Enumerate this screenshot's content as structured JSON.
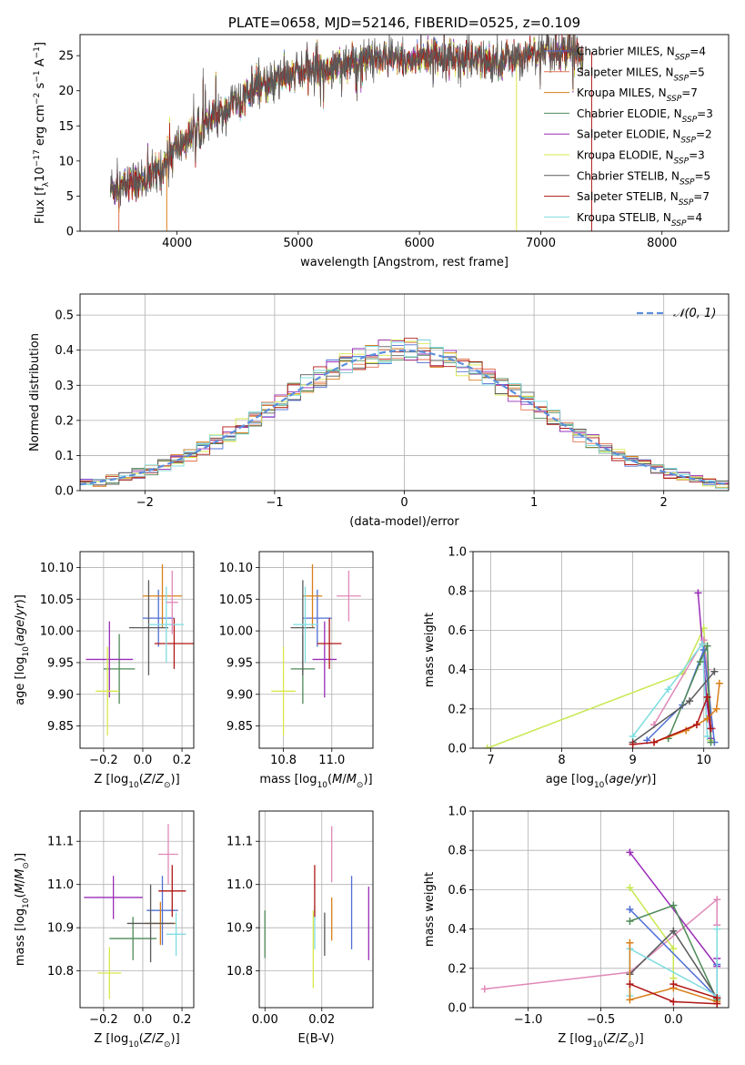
{
  "figure_title": "PLATE=0658, MJD=52146, FIBERID=0525, z=0.109",
  "model_colors": {
    "Chabrier MILES": "#4f6fd6",
    "Salpeter MILES": "#e07050",
    "Kroupa MILES": "#d97f1a",
    "Chabrier ELODIE": "#4e8a57",
    "Salpeter ELODIE": "#9a2cb8",
    "Kroupa ELODIE": "#d9e84a",
    "Chabrier STELIB": "#5a5a5a",
    "Salpeter STELIB": "#b01515",
    "Kroupa STELIB": "#7fdde0",
    "pink": "#e088b8",
    "lime": "#c8e850",
    "gaussian": "#5b8fdc"
  },
  "chart_data": [
    {
      "id": "spectrum",
      "type": "line",
      "title": "PLATE=0658, MJD=52146, FIBERID=0525, z=0.109",
      "xlabel": "wavelength [Angstrom, rest frame]",
      "ylabel": "Flux [f_λ 10^-17 erg cm^-2 s^-1 A^-1]",
      "xlim": [
        3200,
        8550
      ],
      "ylim": [
        0,
        28
      ],
      "xticks": [
        4000,
        5000,
        6000,
        7000,
        8000
      ],
      "yticks": [
        0,
        5,
        10,
        15,
        20,
        25
      ],
      "grid": false,
      "legend_position": "right",
      "continuum": {
        "x": [
          3450,
          3600,
          3750,
          3880,
          3950,
          4100,
          4300,
          4500,
          4700,
          4900,
          5100,
          5300,
          5500,
          5700,
          5900,
          6100,
          6300,
          6500,
          6700,
          6900,
          7100,
          7250,
          7350
        ],
        "y": [
          6.0,
          6.8,
          7.5,
          9.0,
          11.0,
          13.5,
          16.0,
          18.5,
          20.5,
          22.0,
          23.0,
          23.5,
          24.0,
          24.5,
          24.3,
          25.0,
          24.8,
          24.2,
          24.5,
          25.2,
          25.5,
          25.6,
          25.5
        ]
      },
      "series": [
        {
          "name": "Chabrier MILES",
          "label": "Chabrier MILES, N",
          "sub": "SSP",
          "count": "=4",
          "color": "#4f6fd6"
        },
        {
          "name": "Salpeter MILES",
          "label": "Salpeter MILES, N",
          "sub": "SSP",
          "count": "=5",
          "color": "#e07050"
        },
        {
          "name": "Kroupa MILES",
          "label": "Kroupa MILES, N",
          "sub": "SSP",
          "count": "=7",
          "color": "#d97f1a"
        },
        {
          "name": "Chabrier ELODIE",
          "label": "Chabrier ELODIE, N",
          "sub": "SSP",
          "count": "=3",
          "color": "#4e8a57"
        },
        {
          "name": "Salpeter ELODIE",
          "label": "Salpeter ELODIE, N",
          "sub": "SSP",
          "count": "=2",
          "color": "#9a2cb8"
        },
        {
          "name": "Kroupa ELODIE",
          "label": "Kroupa ELODIE, N",
          "sub": "SSP",
          "count": "=3",
          "color": "#d9e84a"
        },
        {
          "name": "Chabrier STELIB",
          "label": "Chabrier STELIB, N",
          "sub": "SSP",
          "count": "=5",
          "color": "#5a5a5a"
        },
        {
          "name": "Salpeter STELIB",
          "label": "Salpeter STELIB, N",
          "sub": "SSP",
          "count": "=7",
          "color": "#b01515"
        },
        {
          "name": "Kroupa STELIB",
          "label": "Kroupa STELIB, N",
          "sub": "SSP",
          "count": "=4",
          "color": "#7fdde0"
        }
      ]
    },
    {
      "id": "residuals",
      "type": "line",
      "xlabel": "(data-model)/error",
      "ylabel": "Normed distribution",
      "xlim": [
        -2.5,
        2.5
      ],
      "ylim": [
        0,
        0.56
      ],
      "xticks": [
        -2,
        -1,
        0,
        1,
        2
      ],
      "yticks": [
        0.0,
        0.1,
        0.2,
        0.3,
        0.4,
        0.5
      ],
      "grid": true,
      "legend_position": "top-right",
      "gaussian": {
        "label": "𝒩(0, 1)",
        "mean": 0,
        "sigma": 1
      },
      "bin_width": 0.1,
      "series_colors": [
        "#4f6fd6",
        "#e07050",
        "#d97f1a",
        "#4e8a57",
        "#9a2cb8",
        "#d9e84a",
        "#5a5a5a",
        "#b01515",
        "#7fdde0"
      ]
    },
    {
      "id": "age-vs-Z",
      "type": "scatter",
      "xlabel": "Z [log10(Z/Z⊙)]",
      "ylabel": "age [log10(age/yr)]",
      "xlim": [
        -0.32,
        0.26
      ],
      "ylim": [
        9.815,
        10.125
      ],
      "xticks": [
        -0.2,
        0.0,
        0.2
      ],
      "yticks": [
        9.85,
        9.9,
        9.95,
        10.0,
        10.05,
        10.1
      ],
      "grid": true,
      "points": [
        {
          "x": 0.08,
          "y": 10.02,
          "xerr": 0.08,
          "yerr": 0.045,
          "color": "#4f6fd6"
        },
        {
          "x": 0.1,
          "y": 10.055,
          "xerr": 0.1,
          "yerr": 0.05,
          "color": "#d97f1a"
        },
        {
          "x": -0.12,
          "y": 9.94,
          "xerr": 0.08,
          "yerr": 0.055,
          "color": "#4e8a57"
        },
        {
          "x": -0.17,
          "y": 9.955,
          "xerr": 0.12,
          "yerr": 0.06,
          "color": "#9a2cb8"
        },
        {
          "x": -0.18,
          "y": 9.905,
          "xerr": 0.06,
          "yerr": 0.07,
          "color": "#d9e84a"
        },
        {
          "x": 0.03,
          "y": 10.005,
          "xerr": 0.1,
          "yerr": 0.075,
          "color": "#5a5a5a"
        },
        {
          "x": 0.16,
          "y": 9.98,
          "xerr": 0.1,
          "yerr": 0.04,
          "color": "#b01515"
        },
        {
          "x": 0.12,
          "y": 10.01,
          "xerr": 0.09,
          "yerr": 0.06,
          "color": "#7fdde0"
        },
        {
          "x": 0.15,
          "y": 10.045,
          "xerr": 0.03,
          "yerr": 0.05,
          "color": "#e088b8"
        }
      ]
    },
    {
      "id": "age-vs-mass",
      "type": "scatter",
      "xlabel": "mass [log10(M/M⊙)]",
      "ylabel": "",
      "xlim": [
        10.7,
        11.17
      ],
      "ylim": [
        9.815,
        10.125
      ],
      "xticks": [
        10.8,
        11.0
      ],
      "yticks": [
        9.85,
        9.9,
        9.95,
        10.0,
        10.05,
        10.1
      ],
      "grid": true,
      "points": [
        {
          "x": 10.94,
          "y": 10.02,
          "xerr": 0.06,
          "yerr": 0.045,
          "color": "#4f6fd6"
        },
        {
          "x": 10.92,
          "y": 10.055,
          "xerr": 0.04,
          "yerr": 0.05,
          "color": "#d97f1a"
        },
        {
          "x": 10.88,
          "y": 9.94,
          "xerr": 0.05,
          "yerr": 0.055,
          "color": "#4e8a57"
        },
        {
          "x": 10.97,
          "y": 9.955,
          "xerr": 0.05,
          "yerr": 0.06,
          "color": "#9a2cb8"
        },
        {
          "x": 10.8,
          "y": 9.905,
          "xerr": 0.05,
          "yerr": 0.07,
          "color": "#d9e84a"
        },
        {
          "x": 10.88,
          "y": 10.005,
          "xerr": 0.05,
          "yerr": 0.075,
          "color": "#5a5a5a"
        },
        {
          "x": 10.99,
          "y": 9.98,
          "xerr": 0.05,
          "yerr": 0.04,
          "color": "#b01515"
        },
        {
          "x": 10.89,
          "y": 10.01,
          "xerr": 0.05,
          "yerr": 0.06,
          "color": "#7fdde0"
        },
        {
          "x": 11.07,
          "y": 10.055,
          "xerr": 0.05,
          "yerr": 0.04,
          "color": "#e088b8"
        }
      ]
    },
    {
      "id": "weight-vs-age",
      "type": "line",
      "xlabel": "age [log10(age/yr)]",
      "ylabel": "mass weight",
      "xlim": [
        6.75,
        10.35
      ],
      "ylim": [
        0,
        1.0
      ],
      "xticks": [
        7,
        8,
        9,
        10
      ],
      "yticks": [
        0.0,
        0.2,
        0.4,
        0.6,
        0.8,
        1.0
      ],
      "grid": true,
      "series": [
        {
          "color": "#c8e850",
          "x": [
            6.95,
            9.7,
            10.0,
            10.1
          ],
          "y": [
            0.0,
            0.38,
            0.61,
            0.04
          ]
        },
        {
          "color": "#9a2cb8",
          "x": [
            9.92,
            10.05,
            10.1
          ],
          "y": [
            0.79,
            0.22,
            0.05
          ]
        },
        {
          "color": "#e088b8",
          "x": [
            9.3,
            10.0,
            10.05,
            10.12
          ],
          "y": [
            0.12,
            0.55,
            0.4,
            0.1
          ]
        },
        {
          "color": "#7fdde0",
          "x": [
            9.0,
            9.5,
            9.98,
            10.05
          ],
          "y": [
            0.06,
            0.3,
            0.53,
            0.06
          ]
        },
        {
          "color": "#4f6fd6",
          "x": [
            9.2,
            9.7,
            10.0,
            10.15
          ],
          "y": [
            0.04,
            0.22,
            0.5,
            0.03
          ]
        },
        {
          "color": "#4e8a57",
          "x": [
            9.5,
            9.95,
            10.05,
            10.1
          ],
          "y": [
            0.05,
            0.44,
            0.52,
            0.03
          ]
        },
        {
          "color": "#5a5a5a",
          "x": [
            9.0,
            9.8,
            10.15
          ],
          "y": [
            0.03,
            0.24,
            0.39
          ]
        },
        {
          "color": "#d97f1a",
          "x": [
            9.3,
            9.75,
            10.05,
            10.18,
            10.22
          ],
          "y": [
            0.03,
            0.09,
            0.15,
            0.2,
            0.33
          ]
        },
        {
          "color": "#b01515",
          "x": [
            9.0,
            9.3,
            9.9,
            10.05,
            10.1
          ],
          "y": [
            0.02,
            0.03,
            0.12,
            0.26,
            0.1
          ]
        }
      ]
    },
    {
      "id": "mass-vs-Z",
      "type": "scatter",
      "xlabel": "Z [log10(Z/Z⊙)]",
      "ylabel": "mass [log10(M/M⊙)]",
      "xlim": [
        -0.32,
        0.26
      ],
      "ylim": [
        10.715,
        11.17
      ],
      "xticks": [
        -0.2,
        0.0,
        0.2
      ],
      "yticks": [
        10.8,
        10.9,
        11.0,
        11.1
      ],
      "grid": true,
      "points": [
        {
          "x": 0.1,
          "y": 10.94,
          "xerr": 0.08,
          "yerr": 0.08,
          "color": "#4f6fd6"
        },
        {
          "x": 0.09,
          "y": 10.91,
          "xerr": 0.08,
          "yerr": 0.05,
          "color": "#d97f1a"
        },
        {
          "x": -0.05,
          "y": 10.875,
          "xerr": 0.12,
          "yerr": 0.05,
          "color": "#4e8a57"
        },
        {
          "x": -0.15,
          "y": 10.97,
          "xerr": 0.15,
          "yerr": 0.05,
          "color": "#9a2cb8"
        },
        {
          "x": -0.17,
          "y": 10.795,
          "xerr": 0.06,
          "yerr": 0.06,
          "color": "#d9e84a"
        },
        {
          "x": 0.04,
          "y": 10.91,
          "xerr": 0.12,
          "yerr": 0.09,
          "color": "#5a5a5a"
        },
        {
          "x": 0.15,
          "y": 10.985,
          "xerr": 0.07,
          "yerr": 0.06,
          "color": "#b01515"
        },
        {
          "x": 0.17,
          "y": 10.885,
          "xerr": 0.05,
          "yerr": 0.05,
          "color": "#7fdde0"
        },
        {
          "x": 0.13,
          "y": 11.07,
          "xerr": 0.05,
          "yerr": 0.07,
          "color": "#e088b8"
        }
      ]
    },
    {
      "id": "mass-vs-EBV",
      "type": "scatter",
      "xlabel": "E(B-V)",
      "ylabel": "",
      "xlim": [
        -0.002,
        0.038
      ],
      "ylim": [
        10.715,
        11.17
      ],
      "xticks": [
        0.0,
        0.02
      ],
      "yticks": [
        10.8,
        10.9,
        11.0,
        11.1
      ],
      "grid": true,
      "points": [
        {
          "x": 0.0,
          "y": 10.885,
          "yerr": 0.055,
          "color": "#4e8a57"
        },
        {
          "x": 0.017,
          "y": 10.85,
          "yerr": 0.09,
          "color": "#d9e84a"
        },
        {
          "x": 0.0175,
          "y": 10.9,
          "yerr": 0.05,
          "color": "#7fdde0"
        },
        {
          "x": 0.0175,
          "y": 10.985,
          "yerr": 0.06,
          "color": "#b01515"
        },
        {
          "x": 0.021,
          "y": 10.885,
          "yerr": 0.05,
          "color": "#5a5a5a"
        },
        {
          "x": 0.0235,
          "y": 10.92,
          "yerr": 0.05,
          "color": "#d97f1a"
        },
        {
          "x": 0.0235,
          "y": 11.07,
          "yerr": 0.065,
          "color": "#e088b8"
        },
        {
          "x": 0.0305,
          "y": 10.935,
          "yerr": 0.085,
          "color": "#4f6fd6"
        },
        {
          "x": 0.0365,
          "y": 10.91,
          "yerr": 0.085,
          "color": "#9a2cb8"
        }
      ]
    },
    {
      "id": "weight-vs-Z",
      "type": "line",
      "xlabel": "Z [log10(Z/Z⊙)]",
      "ylabel": "mass weight",
      "xlim": [
        -1.38,
        0.38
      ],
      "ylim": [
        0,
        1.0
      ],
      "xticks": [
        -1.0,
        -0.5,
        0.0
      ],
      "yticks": [
        0.0,
        0.2,
        0.4,
        0.6,
        0.8,
        1.0
      ],
      "grid": true,
      "series": [
        {
          "color": "#e088b8",
          "x": [
            -1.3,
            -0.3,
            0.3,
            0.3
          ],
          "y": [
            0.095,
            0.18,
            0.55,
            0.42
          ]
        },
        {
          "color": "#9a2cb8",
          "x": [
            -0.3,
            0.3,
            0.3
          ],
          "y": [
            0.79,
            0.21,
            0.25
          ]
        },
        {
          "color": "#c8e850",
          "x": [
            -0.3,
            0.0,
            0.0
          ],
          "y": [
            0.61,
            0.3,
            0.15
          ]
        },
        {
          "color": "#4f6fd6",
          "x": [
            -0.3,
            0.3,
            0.3
          ],
          "y": [
            0.5,
            0.05,
            0.22
          ]
        },
        {
          "color": "#4e8a57",
          "x": [
            -0.3,
            0.0,
            0.3
          ],
          "y": [
            0.44,
            0.52,
            0.04
          ]
        },
        {
          "color": "#5a5a5a",
          "x": [
            -0.3,
            0.0,
            0.3
          ],
          "y": [
            0.17,
            0.39,
            0.05
          ]
        },
        {
          "color": "#7fdde0",
          "x": [
            -0.3,
            -0.3,
            0.3,
            0.3
          ],
          "y": [
            0.06,
            0.3,
            0.06,
            0.4
          ]
        },
        {
          "color": "#d97f1a",
          "x": [
            -0.3,
            -0.3,
            0.0,
            0.3
          ],
          "y": [
            0.33,
            0.04,
            0.1,
            0.03
          ]
        },
        {
          "color": "#b01515",
          "x": [
            -0.3,
            0.0,
            0.3
          ],
          "y": [
            0.12,
            0.03,
            0.02
          ]
        },
        {
          "color": "#b01515",
          "x": [
            0.0,
            0.3
          ],
          "y": [
            0.12,
            0.05
          ]
        }
      ]
    }
  ]
}
